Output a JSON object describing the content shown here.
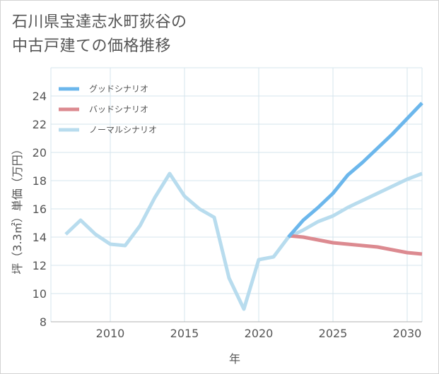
{
  "chart_data": {
    "type": "line",
    "title": [
      "石川県宝達志水町荻谷の",
      "中古戸建ての価格推移"
    ],
    "xlabel": "年",
    "ylabel": "坪（3.3㎡）単価（万円）",
    "xlim": [
      2006,
      2031
    ],
    "ylim": [
      8,
      26
    ],
    "xticks": [
      2010,
      2015,
      2020,
      2025,
      2030
    ],
    "yticks": [
      8,
      10,
      12,
      14,
      16,
      18,
      20,
      22,
      24
    ],
    "grid": true,
    "legend_position": "top-left",
    "series": [
      {
        "name": "グッドシナリオ",
        "color": "#6cb7ec",
        "x": [
          2022,
          2023,
          2024,
          2025,
          2026,
          2027,
          2028,
          2029,
          2030,
          2031
        ],
        "y": [
          14.0,
          15.2,
          16.1,
          17.1,
          18.4,
          19.3,
          20.3,
          21.3,
          22.4,
          23.5
        ]
      },
      {
        "name": "バッドシナリオ",
        "color": "#dc8a90",
        "x": [
          2022,
          2023,
          2024,
          2025,
          2026,
          2027,
          2028,
          2029,
          2030,
          2031
        ],
        "y": [
          14.1,
          14.0,
          13.8,
          13.6,
          13.5,
          13.4,
          13.3,
          13.1,
          12.9,
          12.8
        ]
      },
      {
        "name": "ノーマルシナリオ",
        "color": "#b8dcee",
        "x": [
          2007,
          2008,
          2009,
          2010,
          2011,
          2012,
          2013,
          2014,
          2015,
          2016,
          2017,
          2018,
          2019,
          2020,
          2021,
          2022,
          2023,
          2024,
          2025,
          2026,
          2027,
          2028,
          2029,
          2030,
          2031
        ],
        "y": [
          14.2,
          15.2,
          14.2,
          13.5,
          13.4,
          14.8,
          16.8,
          18.5,
          16.9,
          16.0,
          15.4,
          11.1,
          8.9,
          12.4,
          12.6,
          14.0,
          14.5,
          15.1,
          15.5,
          16.1,
          16.6,
          17.1,
          17.6,
          18.1,
          18.5
        ]
      }
    ]
  },
  "colors": {
    "grid": "#d5e4ec",
    "axis": "#b0b0b0",
    "text": "#555555"
  }
}
